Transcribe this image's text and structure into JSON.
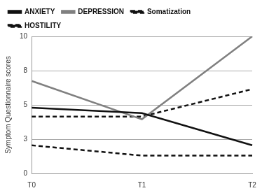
{
  "chart_data": {
    "type": "line",
    "y_label": "Symptom Questionnaire scores",
    "categories": [
      "T0",
      "T1",
      "T2"
    ],
    "series": [
      {
        "name": "ANXIETY",
        "color": "#111111",
        "line_style": "solid",
        "values": [
          4.8,
          4.4,
          2.05
        ]
      },
      {
        "name": "DEPRESSION",
        "color": "#808080",
        "line_style": "solid",
        "values": [
          6.75,
          3.95,
          10
        ]
      },
      {
        "name": "Somatization",
        "color": "#111111",
        "line_style": "dashed",
        "values": [
          4.15,
          4.15,
          6.15
        ]
      },
      {
        "name": "HOSTILITY",
        "color": "#111111",
        "line_style": "dashed",
        "values": [
          2.05,
          1.3,
          1.3
        ]
      }
    ],
    "ylim": [
      0,
      10
    ],
    "yticks": [
      0,
      {
        "value": 2.5,
        "label": "3"
      },
      5,
      {
        "value": 7.5,
        "label": "8"
      },
      10
    ],
    "grid": true,
    "legend": "top"
  }
}
